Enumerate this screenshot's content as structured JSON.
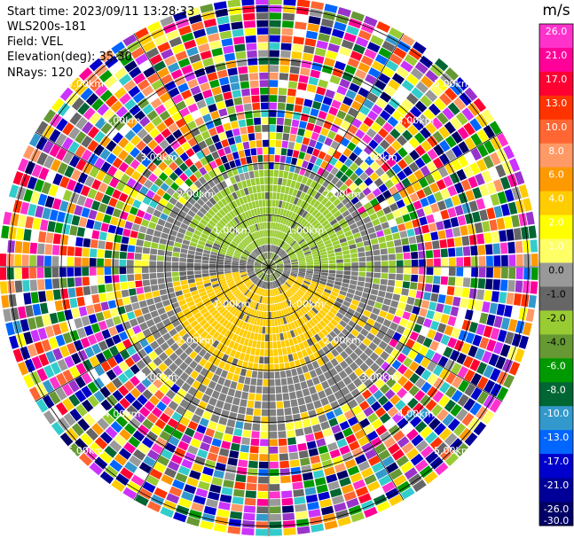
{
  "header": {
    "start_time": "Start time: 2023/09/11 13:28:33",
    "instrument": "WLS200s-181",
    "field": "Field: VEL",
    "elevation": "Elevation(deg): 35.30",
    "nrays": "NRays: 120"
  },
  "chart_data": {
    "type": "heatmap",
    "projection": "polar-ppi",
    "range_rings_km": [
      "1.00km",
      "2.00km",
      "3.00km",
      "4.00km",
      "5.00km"
    ],
    "colorbar": {
      "unit": "m/s",
      "ticks": [
        "26.0",
        "21.0",
        "17.0",
        "13.0",
        "10.0",
        "8.0",
        "6.0",
        "4.0",
        "2.0",
        "1.0",
        "0.0",
        "-1.0",
        "-2.0",
        "-4.0",
        "-6.0",
        "-8.0",
        "-10.0",
        "-13.0",
        "-17.0",
        "-21.0",
        "-26.0",
        "-30.0"
      ],
      "colors": [
        "#ff33cc",
        "#ff0099",
        "#ff0033",
        "#ff3300",
        "#ff6633",
        "#ff9966",
        "#ff9900",
        "#ffcc00",
        "#ffff00",
        "#ffff66",
        "#999999",
        "#666666",
        "#99cc33",
        "#669933",
        "#009900",
        "#006633",
        "#3399cc",
        "#0066ff",
        "#0000cc",
        "#000099",
        "#000066"
      ]
    },
    "noise_colors": [
      "#ff33cc",
      "#ff0099",
      "#ff0033",
      "#ff3300",
      "#ff6633",
      "#ff9966",
      "#ff9900",
      "#ffcc00",
      "#ffff00",
      "#ffff66",
      "#999999",
      "#666666",
      "#99cc33",
      "#669933",
      "#009900",
      "#006633",
      "#3399cc",
      "#0066ff",
      "#0000cc",
      "#000099",
      "#000066",
      "#cc33ff",
      "#9933cc",
      "#33cccc",
      "#ffffff"
    ],
    "signal_colors": {
      "positive": "#ffcc00",
      "negative": "#99cc33",
      "zero": "#808080",
      "near_zero": "#666666",
      "ring_edge": "#ffff33"
    }
  }
}
